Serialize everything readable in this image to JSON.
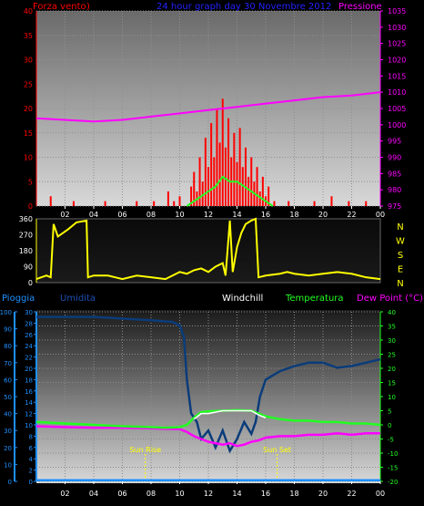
{
  "header": {
    "left_label": "Forza vento",
    "left_label_suffix": ")",
    "center_title": "24 hour graph day  30 Novembre 2012",
    "right_label": "Pressione"
  },
  "hour_labels": [
    "02",
    "04",
    "06",
    "08",
    "10",
    "12",
    "14",
    "16",
    "18",
    "20",
    "22",
    "00"
  ],
  "direction_labels": [
    "N",
    "W",
    "S",
    "E",
    "N"
  ],
  "bottom_header": {
    "rain": "Pioggia",
    "humidity": "Umidita",
    "windchill": "Windchill",
    "temperature": "Temperatura",
    "dewpoint": "Dew Point (°C)"
  },
  "sun": {
    "rise_label": "Sun Rise",
    "set_label": "Sun Set",
    "rise_hour": 7.6,
    "set_hour": 16.8
  },
  "colors": {
    "wind": "#ff0000",
    "pressure": "#ff00ff",
    "direction": "#ffff00",
    "humidity": "#0a3c7a",
    "temperature": "#22ff22",
    "windchill": "#ffffff",
    "dewpoint": "#ff00ff",
    "rain": "#1e90ff",
    "title": "#2222ff"
  },
  "chart_data": [
    {
      "type": "bar",
      "name": "wind_pressure",
      "x_range": [
        0,
        24
      ],
      "left_axis": {
        "ticks": [
          0,
          5,
          10,
          15,
          20,
          25,
          30,
          35,
          40
        ],
        "range": [
          0,
          40
        ]
      },
      "right_axis": {
        "ticks": [
          975,
          980,
          985,
          990,
          995,
          1000,
          1005,
          1010,
          1015,
          1020,
          1025,
          1030,
          1035
        ],
        "range": [
          975,
          1035
        ]
      },
      "wind_gusts": [
        [
          0.3,
          0
        ],
        [
          1.0,
          2
        ],
        [
          1.6,
          0
        ],
        [
          2.6,
          1
        ],
        [
          3.3,
          0
        ],
        [
          4.0,
          0
        ],
        [
          4.8,
          1
        ],
        [
          5.5,
          0
        ],
        [
          6.2,
          0
        ],
        [
          7.0,
          1
        ],
        [
          7.6,
          0
        ],
        [
          8.2,
          1
        ],
        [
          8.8,
          0
        ],
        [
          9.2,
          3
        ],
        [
          9.6,
          1
        ],
        [
          10.0,
          2
        ],
        [
          10.4,
          0
        ],
        [
          10.8,
          4
        ],
        [
          11.0,
          7
        ],
        [
          11.2,
          3
        ],
        [
          11.4,
          10
        ],
        [
          11.6,
          5
        ],
        [
          11.8,
          14
        ],
        [
          12.0,
          8
        ],
        [
          12.2,
          17
        ],
        [
          12.4,
          10
        ],
        [
          12.6,
          20
        ],
        [
          12.8,
          13
        ],
        [
          13.0,
          22
        ],
        [
          13.2,
          12
        ],
        [
          13.4,
          18
        ],
        [
          13.6,
          10
        ],
        [
          13.8,
          15
        ],
        [
          14.0,
          9
        ],
        [
          14.2,
          16
        ],
        [
          14.4,
          8
        ],
        [
          14.6,
          12
        ],
        [
          14.8,
          6
        ],
        [
          15.0,
          10
        ],
        [
          15.2,
          5
        ],
        [
          15.4,
          8
        ],
        [
          15.6,
          3
        ],
        [
          15.8,
          6
        ],
        [
          16.0,
          2
        ],
        [
          16.2,
          4
        ],
        [
          16.6,
          1
        ],
        [
          17.0,
          0
        ],
        [
          17.6,
          1
        ],
        [
          18.2,
          0
        ],
        [
          18.8,
          0
        ],
        [
          19.4,
          1
        ],
        [
          20.0,
          0
        ],
        [
          20.6,
          2
        ],
        [
          21.2,
          0
        ],
        [
          21.8,
          1
        ],
        [
          22.4,
          0
        ],
        [
          23.0,
          1
        ],
        [
          23.6,
          0
        ]
      ],
      "wind_average": [
        [
          10.5,
          0
        ],
        [
          11.0,
          1
        ],
        [
          11.5,
          2
        ],
        [
          12.0,
          3
        ],
        [
          12.5,
          4
        ],
        [
          13.0,
          6
        ],
        [
          13.5,
          5
        ],
        [
          14.0,
          5
        ],
        [
          14.5,
          4
        ],
        [
          15.0,
          3
        ],
        [
          15.5,
          2
        ],
        [
          16.0,
          1
        ],
        [
          16.5,
          0
        ]
      ],
      "pressure": [
        [
          0,
          1002
        ],
        [
          2,
          1001.5
        ],
        [
          4,
          1001
        ],
        [
          6,
          1001.5
        ],
        [
          8,
          1002.5
        ],
        [
          10,
          1003.5
        ],
        [
          12,
          1004.5
        ],
        [
          14,
          1005.5
        ],
        [
          16,
          1006.5
        ],
        [
          18,
          1007.5
        ],
        [
          20,
          1008.5
        ],
        [
          22,
          1009
        ],
        [
          24,
          1010
        ]
      ]
    },
    {
      "type": "line",
      "name": "wind_direction",
      "x_range": [
        0,
        24
      ],
      "y_axis": {
        "ticks": [
          0,
          90,
          180,
          270,
          360
        ],
        "range": [
          0,
          360
        ]
      },
      "values": [
        [
          0,
          20
        ],
        [
          0.7,
          40
        ],
        [
          1.0,
          30
        ],
        [
          1.2,
          330
        ],
        [
          1.5,
          260
        ],
        [
          2.2,
          300
        ],
        [
          2.8,
          340
        ],
        [
          3.5,
          350
        ],
        [
          3.6,
          30
        ],
        [
          4.0,
          40
        ],
        [
          5.0,
          40
        ],
        [
          6.0,
          20
        ],
        [
          7.0,
          40
        ],
        [
          8.0,
          30
        ],
        [
          9.0,
          20
        ],
        [
          9.5,
          40
        ],
        [
          10.0,
          60
        ],
        [
          10.5,
          50
        ],
        [
          11.0,
          70
        ],
        [
          11.5,
          80
        ],
        [
          12.0,
          60
        ],
        [
          12.5,
          90
        ],
        [
          13.0,
          110
        ],
        [
          13.2,
          40
        ],
        [
          13.5,
          350
        ],
        [
          13.7,
          60
        ],
        [
          14.0,
          200
        ],
        [
          14.3,
          280
        ],
        [
          14.6,
          330
        ],
        [
          15.0,
          350
        ],
        [
          15.3,
          360
        ],
        [
          15.5,
          30
        ],
        [
          16.0,
          40
        ],
        [
          17.0,
          50
        ],
        [
          17.5,
          60
        ],
        [
          18.0,
          50
        ],
        [
          19.0,
          40
        ],
        [
          20.0,
          50
        ],
        [
          21.0,
          60
        ],
        [
          22.0,
          50
        ],
        [
          23.0,
          30
        ],
        [
          24.0,
          20
        ]
      ]
    },
    {
      "type": "line",
      "name": "temperature_humidity_rain",
      "x_range": [
        0,
        24
      ],
      "rain_axis": {
        "ticks": [
          0,
          2,
          4,
          6,
          8,
          10,
          12,
          14,
          16,
          18,
          20,
          22,
          24,
          26,
          28,
          30
        ],
        "range": [
          0,
          30
        ]
      },
      "humidity_axis": {
        "ticks": [
          0,
          10,
          20,
          30,
          40,
          50,
          60,
          70,
          80,
          90,
          100
        ],
        "range": [
          0,
          100
        ]
      },
      "temperature_axis": {
        "ticks": [
          -20,
          -15,
          -10,
          -5,
          0,
          5,
          10,
          15,
          20,
          25,
          30,
          35,
          40
        ],
        "range": [
          -20,
          40
        ]
      },
      "humidity": [
        [
          0,
          97
        ],
        [
          2,
          97
        ],
        [
          4,
          97
        ],
        [
          6,
          96
        ],
        [
          8,
          95
        ],
        [
          9.5,
          94
        ],
        [
          10,
          92
        ],
        [
          10.3,
          85
        ],
        [
          10.5,
          60
        ],
        [
          10.8,
          40
        ],
        [
          11.2,
          35
        ],
        [
          11.5,
          25
        ],
        [
          12.0,
          30
        ],
        [
          12.5,
          20
        ],
        [
          13.0,
          30
        ],
        [
          13.5,
          18
        ],
        [
          14.0,
          25
        ],
        [
          14.5,
          35
        ],
        [
          15.0,
          28
        ],
        [
          15.3,
          35
        ],
        [
          15.6,
          50
        ],
        [
          16.0,
          60
        ],
        [
          17.0,
          65
        ],
        [
          18.0,
          68
        ],
        [
          19.0,
          70
        ],
        [
          20.0,
          70
        ],
        [
          21.0,
          67
        ],
        [
          22.0,
          68
        ],
        [
          23.0,
          70
        ],
        [
          24.0,
          72
        ]
      ],
      "temperature": [
        [
          0,
          1.0
        ],
        [
          2,
          0.5
        ],
        [
          4,
          0.0
        ],
        [
          6,
          -0.5
        ],
        [
          8,
          -0.8
        ],
        [
          9.0,
          -1.0
        ],
        [
          10.0,
          -0.8
        ],
        [
          10.5,
          0.0
        ],
        [
          11.0,
          2.5
        ],
        [
          11.5,
          4.5
        ],
        [
          12.0,
          4.8
        ],
        [
          13.0,
          5.0
        ],
        [
          14.0,
          5.2
        ],
        [
          15.0,
          5.0
        ],
        [
          15.5,
          4.0
        ],
        [
          16.0,
          3.0
        ],
        [
          17.0,
          2.0
        ],
        [
          18.0,
          1.5
        ],
        [
          19.0,
          1.5
        ],
        [
          20.0,
          1.0
        ],
        [
          21.0,
          1.0
        ],
        [
          22.0,
          0.5
        ],
        [
          23.0,
          0.5
        ],
        [
          24.0,
          0.0
        ]
      ],
      "windchill": [
        [
          11.0,
          2.0
        ],
        [
          11.5,
          4.0
        ],
        [
          12.0,
          4.0
        ],
        [
          13.0,
          5.0
        ],
        [
          14.0,
          5.0
        ],
        [
          15.0,
          5.0
        ],
        [
          15.5,
          3.5
        ],
        [
          16.0,
          2.5
        ]
      ],
      "dewpoint": [
        [
          0,
          -0.5
        ],
        [
          2,
          -0.8
        ],
        [
          4,
          -1.0
        ],
        [
          6,
          -1.0
        ],
        [
          8,
          -1.2
        ],
        [
          9,
          -1.4
        ],
        [
          10,
          -1.5
        ],
        [
          10.5,
          -2.5
        ],
        [
          11.0,
          -4.0
        ],
        [
          11.5,
          -5.0
        ],
        [
          12.0,
          -6.0
        ],
        [
          12.5,
          -6.5
        ],
        [
          13.0,
          -7.0
        ],
        [
          13.5,
          -6.5
        ],
        [
          14.0,
          -7.5
        ],
        [
          14.5,
          -7.0
        ],
        [
          15.0,
          -6.0
        ],
        [
          15.5,
          -5.5
        ],
        [
          16.0,
          -4.5
        ],
        [
          17.0,
          -4.0
        ],
        [
          18.0,
          -4.0
        ],
        [
          19.0,
          -3.5
        ],
        [
          20.0,
          -3.5
        ],
        [
          21.0,
          -3.0
        ],
        [
          22.0,
          -3.5
        ],
        [
          23.0,
          -3.0
        ],
        [
          24.0,
          -3.0
        ]
      ],
      "rain": [
        [
          0,
          0.2
        ],
        [
          24,
          0.2
        ]
      ]
    }
  ]
}
